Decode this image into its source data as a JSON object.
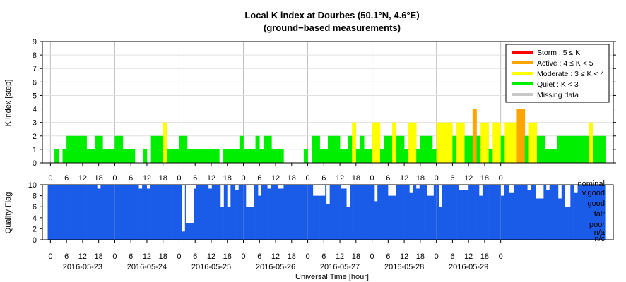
{
  "chart_data": [
    {
      "type": "bar",
      "title": "Local K index at Dourbes (50.1°N, 4.6°E)",
      "subtitle": "(ground−based measurements)",
      "ylabel": "K index [step]",
      "ylim": [
        0,
        9
      ],
      "yticks": [
        "0",
        "1",
        "2",
        "3",
        "4",
        "5",
        "6",
        "7",
        "8",
        "9"
      ],
      "grid": true,
      "legend_position": "top-right",
      "bin_hours": 1.5,
      "x_start": "2016-05-22 21:00",
      "legend": [
        {
          "label": "Storm : 5 ≤ K",
          "color": "#ff0000"
        },
        {
          "label": "Active : 4 ≤ K < 5",
          "color": "#ffa500"
        },
        {
          "label": "Moderate : 3 ≤ K < 4",
          "color": "#ffff00"
        },
        {
          "label": "Quiet : K < 3",
          "color": "#00ee00"
        },
        {
          "label": "Missing data",
          "color": "#c8c8c8"
        }
      ],
      "values": [
        0,
        0,
        0,
        1,
        0,
        1,
        2,
        2,
        2,
        2,
        2,
        1,
        1,
        2,
        2,
        1,
        1,
        1,
        2,
        2,
        1,
        1,
        1,
        0,
        0,
        1,
        0,
        2,
        2,
        2,
        3,
        1,
        1,
        1,
        2,
        2,
        1,
        1,
        1,
        1,
        1,
        1,
        1,
        1,
        0,
        1,
        1,
        1,
        1,
        2,
        1,
        1,
        1,
        2,
        1,
        2,
        2,
        1,
        1,
        1,
        0,
        0,
        0,
        0,
        0,
        1,
        0,
        2,
        2,
        1,
        1,
        2,
        2,
        2,
        1,
        1,
        2,
        3,
        1,
        2,
        1,
        1,
        3,
        3,
        1,
        2,
        2,
        3,
        2,
        2,
        1,
        3,
        3,
        1,
        2,
        2,
        2,
        1,
        3,
        3,
        3,
        3,
        2,
        3,
        3,
        2,
        2,
        4,
        2,
        3,
        3,
        1,
        3,
        3,
        2,
        3,
        3,
        3,
        4,
        4,
        2,
        3,
        3,
        2,
        2,
        1,
        1,
        1,
        2,
        2,
        2,
        2,
        2,
        2,
        2,
        2,
        3,
        2,
        2,
        2
      ],
      "series_colors": {
        "0": "#00ee00",
        "1": "#00ee00",
        "2": "#00ee00",
        "3": "#ffff00",
        "4": "#ffa500",
        "5": "#ff0000"
      }
    },
    {
      "type": "area",
      "ylabel": "Quality Flag",
      "ylim": [
        0,
        10
      ],
      "yticks": [
        "0",
        "2",
        "4",
        "6",
        "8",
        "10"
      ],
      "xlabel": "Universal Time [hour]",
      "quality_labels": [
        "nominal",
        "v.good",
        "good",
        "fair",
        "poor",
        "n/a",
        "n/c"
      ],
      "series_color": "#1a5be8",
      "bin_hours": 1.5,
      "values": [
        8,
        10,
        10,
        10,
        10,
        10,
        10,
        10,
        10,
        10,
        10,
        10,
        10,
        10,
        10,
        10,
        10,
        10,
        10,
        10,
        10,
        10,
        10,
        10,
        10,
        10,
        10,
        10,
        10,
        10,
        10,
        10,
        10,
        10,
        10,
        10,
        10,
        10,
        10,
        10,
        10,
        10,
        10,
        10,
        10,
        10,
        10,
        10,
        10,
        10,
        10,
        10,
        10,
        10,
        10,
        10,
        10,
        10,
        10,
        10,
        10,
        10,
        10,
        10,
        10,
        10,
        10,
        10,
        10,
        10,
        10,
        10,
        10,
        10,
        10,
        10,
        10,
        10,
        10,
        10,
        10,
        10,
        10,
        10,
        10,
        10,
        10,
        10,
        10,
        10,
        10,
        10,
        10,
        10,
        10,
        10,
        10,
        10,
        10,
        10,
        10,
        10,
        10,
        10,
        10,
        10,
        10,
        10,
        10,
        10,
        10,
        10,
        10,
        10,
        10,
        10,
        10,
        10,
        10,
        10,
        10,
        10,
        10,
        10,
        10,
        10,
        10,
        10,
        10,
        10,
        10,
        10,
        10,
        10,
        10,
        10,
        10,
        10,
        10,
        10
      ],
      "dips": [
        {
          "h": 20.5,
          "w": 1.2,
          "v": 9.3
        },
        {
          "h": 36.0,
          "w": 1.2,
          "v": 9.3
        },
        {
          "h": 39.0,
          "w": 1.2,
          "v": 9.3
        },
        {
          "h": 52.0,
          "w": 1.2,
          "v": 1.5
        },
        {
          "h": 53.5,
          "w": 3.0,
          "v": 3.0
        },
        {
          "h": 56.0,
          "w": 1.2,
          "v": 9.3
        },
        {
          "h": 62.0,
          "w": 1.2,
          "v": 9.3
        },
        {
          "h": 66.5,
          "w": 1.2,
          "v": 6.0
        },
        {
          "h": 69.0,
          "w": 1.2,
          "v": 6.0
        },
        {
          "h": 72.0,
          "w": 1.2,
          "v": 9.0
        },
        {
          "h": 76.0,
          "w": 3.0,
          "v": 6.0
        },
        {
          "h": 80.5,
          "w": 1.2,
          "v": 8.0
        },
        {
          "h": 84.0,
          "w": 1.2,
          "v": 9.3
        },
        {
          "h": 88.0,
          "w": 2.0,
          "v": 9.3
        },
        {
          "h": 101.0,
          "w": 4.5,
          "v": 8.0
        },
        {
          "h": 106.0,
          "w": 1.2,
          "v": 6.5
        },
        {
          "h": 111.5,
          "w": 2.0,
          "v": 9.3
        },
        {
          "h": 113.5,
          "w": 1.2,
          "v": 6.0
        },
        {
          "h": 124.0,
          "w": 1.0,
          "v": 7.0
        },
        {
          "h": 129.0,
          "w": 3.0,
          "v": 8.0
        },
        {
          "h": 137.0,
          "w": 1.2,
          "v": 8.5
        },
        {
          "h": 139.5,
          "w": 1.2,
          "v": 9.3
        },
        {
          "h": 143.5,
          "w": 2.5,
          "v": 8.0
        },
        {
          "h": 148.0,
          "w": 1.2,
          "v": 6.0
        },
        {
          "h": 155.5,
          "w": 3.5,
          "v": 9.0
        },
        {
          "h": 163.0,
          "w": 1.2,
          "v": 8.0
        },
        {
          "h": 171.0,
          "w": 1.2,
          "v": 8.0
        },
        {
          "h": 174.0,
          "w": 2.0,
          "v": 8.5
        },
        {
          "h": 181.0,
          "w": 1.2,
          "v": 9.0
        },
        {
          "h": 184.0,
          "w": 3.0,
          "v": 7.5
        },
        {
          "h": 188.0,
          "w": 1.2,
          "v": 9.0
        },
        {
          "h": 192.5,
          "w": 1.2,
          "v": 7.5
        },
        {
          "h": 195.0,
          "w": 2.0,
          "v": 6.0
        },
        {
          "h": 198.5,
          "w": 1.2,
          "v": 8.5
        }
      ]
    }
  ],
  "x_axis": {
    "hour_ticks": [
      "0",
      "6",
      "12",
      "18",
      "0",
      "6",
      "12",
      "18",
      "0",
      "6",
      "12",
      "18",
      "0",
      "6",
      "12",
      "18",
      "0",
      "6",
      "12",
      "18",
      "0",
      "6",
      "12",
      "18",
      "0",
      "6",
      "12",
      "18",
      "0"
    ],
    "date_labels": [
      "2016-05-23",
      "2016-05-24",
      "2016-05-25",
      "2016-05-26",
      "2016-05-27",
      "2016-05-28",
      "2016-05-29"
    ],
    "xlabel": "Universal Time [hour]"
  },
  "colors": {
    "panel_bg": "#ffffff",
    "grid": "#bfbfbf",
    "frame": "#000000",
    "quality": "#1a5be8"
  }
}
